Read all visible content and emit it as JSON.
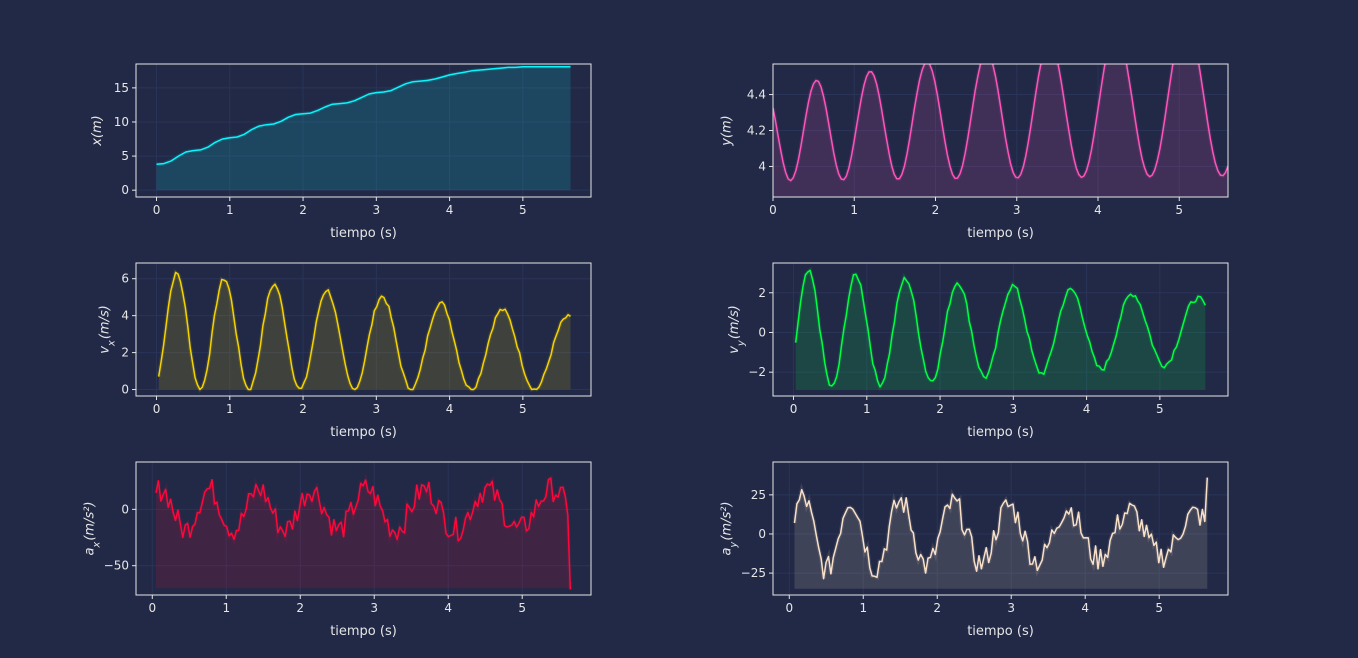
{
  "figure": {
    "background": "#212946",
    "axes_color": "#e6e6e6",
    "grid_color": "#2A3459"
  },
  "chart_data": [
    {
      "type": "line",
      "id": "x-position",
      "title": "",
      "xlabel": "tiempo (s)",
      "ylabel": "x(m)",
      "ylabel_sub": "",
      "color": "#08F7FE",
      "xlim": [
        -0.28,
        5.93
      ],
      "ylim": [
        -1,
        18.5
      ],
      "xticks": [
        0,
        1,
        2,
        3,
        4,
        5
      ],
      "yticks": [
        0,
        5,
        10,
        15
      ],
      "fill_base": 0,
      "grid": true,
      "series": [
        {
          "x": [
            0,
            0.1,
            0.2,
            0.3,
            0.4,
            0.5,
            0.6,
            0.7,
            0.8,
            0.9,
            1,
            1.1,
            1.2,
            1.3,
            1.4,
            1.5,
            1.6,
            1.7,
            1.8,
            1.9,
            2,
            2.1,
            2.2,
            2.3,
            2.4,
            2.5,
            2.6,
            2.7,
            2.8,
            2.9,
            3,
            3.1,
            3.2,
            3.3,
            3.4,
            3.5,
            3.6,
            3.7,
            3.8,
            3.9,
            4,
            4.1,
            4.2,
            4.3,
            4.4,
            4.5,
            4.6,
            4.7,
            4.8,
            4.9,
            5,
            5.1,
            5.2,
            5.3,
            5.4,
            5.5,
            5.65
          ],
          "y": [
            3.8,
            3.9,
            4.3,
            5.0,
            5.6,
            5.8,
            5.9,
            6.3,
            7.0,
            7.5,
            7.7,
            7.8,
            8.2,
            8.9,
            9.4,
            9.6,
            9.7,
            10.1,
            10.7,
            11.1,
            11.2,
            11.3,
            11.7,
            12.2,
            12.6,
            12.7,
            12.8,
            13.1,
            13.6,
            14.1,
            14.3,
            14.4,
            14.6,
            15.1,
            15.6,
            15.9,
            16.0,
            16.1,
            16.3,
            16.6,
            16.9,
            17.1,
            17.3,
            17.5,
            17.6,
            17.7,
            17.8,
            17.9,
            18.0,
            18.0,
            18.1,
            18.1,
            18.1,
            18.1,
            18.1,
            18.1,
            18.1
          ]
        }
      ]
    },
    {
      "type": "line",
      "id": "y-position",
      "title": "",
      "xlabel": "tiempo (s)",
      "ylabel": "y(m)",
      "ylabel_sub": "",
      "color": "#FE53BB",
      "xlim": [
        0,
        5.6
      ],
      "ylim": [
        3.83,
        4.57
      ],
      "xticks": [
        0,
        1,
        2,
        3,
        4,
        5
      ],
      "yticks": [
        4.0,
        4.2,
        4.4
      ],
      "fill_base": 3.83,
      "grid": true,
      "series": [
        {
          "x": [],
          "y": []
        }
      ]
    },
    {
      "type": "line",
      "id": "x-velocity",
      "title": "",
      "xlabel": "tiempo (s)",
      "ylabel": "v",
      "ylabel_sub": "x",
      "ylabel_unit": "(m/s)",
      "color": "#F5D300",
      "xlim": [
        -0.28,
        5.93
      ],
      "ylim": [
        -0.35,
        6.85
      ],
      "xticks": [
        0,
        1,
        2,
        3,
        4,
        5
      ],
      "yticks": [
        0,
        2,
        4,
        6
      ],
      "fill_base": 0,
      "grid": true,
      "series": [
        {
          "x": [],
          "y": []
        }
      ]
    },
    {
      "type": "line",
      "id": "y-velocity",
      "title": "",
      "xlabel": "tiempo (s)",
      "ylabel": "v",
      "ylabel_sub": "y",
      "ylabel_unit": "(m/s)",
      "color": "#00ff41",
      "xlim": [
        -0.28,
        5.93
      ],
      "ylim": [
        -3.2,
        3.5
      ],
      "xticks": [
        0,
        1,
        2,
        3,
        4,
        5
      ],
      "yticks": [
        -2,
        0,
        2
      ],
      "fill_base": -2.9,
      "grid": true,
      "series": [
        {
          "x": [],
          "y": []
        }
      ]
    },
    {
      "type": "line",
      "id": "x-acceleration",
      "title": "",
      "xlabel": "tiempo (s)",
      "ylabel": "a",
      "ylabel_sub": "x",
      "ylabel_unit": "(m/s²)",
      "color": "#FF073A",
      "xlim": [
        -0.22,
        5.93
      ],
      "ylim": [
        -76,
        42
      ],
      "xticks": [
        0,
        1,
        2,
        3,
        4,
        5
      ],
      "yticks": [
        -50,
        0
      ],
      "fill_base": -70,
      "grid": true,
      "series": [
        {
          "x": [],
          "y": []
        }
      ]
    },
    {
      "type": "line",
      "id": "y-acceleration",
      "title": "",
      "xlabel": "tiempo (s)",
      "ylabel": "a",
      "ylabel_sub": "y",
      "ylabel_unit": "(m/s²)",
      "color": "#F8E1C8",
      "xlim": [
        -0.22,
        5.93
      ],
      "ylim": [
        -39,
        46
      ],
      "xticks": [
        0,
        1,
        2,
        3,
        4,
        5
      ],
      "yticks": [
        -25,
        0,
        25
      ],
      "fill_base": -35,
      "grid": true,
      "series": [
        {
          "x": [],
          "y": []
        }
      ]
    }
  ]
}
